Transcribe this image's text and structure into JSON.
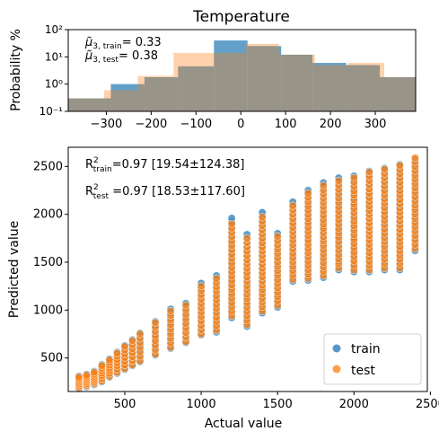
{
  "chart_data": [
    {
      "type": "bar",
      "title": "Temperature",
      "xlabel": "",
      "ylabel": "Probability %",
      "yscale": "log",
      "xlim": [
        -385,
        390
      ],
      "ylim": [
        0.1,
        100
      ],
      "xticks": [
        "−300",
        "−200",
        "−100",
        "0",
        "100",
        "200",
        "300"
      ],
      "xtick_values": [
        -300,
        -200,
        -100,
        0,
        100,
        200,
        300
      ],
      "yticks": [
        "10⁻¹",
        "10⁰",
        "10¹",
        "10²"
      ],
      "ytick_values": [
        0.1,
        1,
        10,
        100
      ],
      "annotations": [
        {
          "name": "μ̃₃,train",
          "value_text": "= 0.33"
        },
        {
          "name": "μ̃₃,test",
          "value_text": "= 0.38"
        }
      ],
      "series": [
        {
          "name": "train",
          "color": "#1f77b4",
          "bins": [
            {
              "x0": -385,
              "x1": -290,
              "value": 0.3
            },
            {
              "x0": -290,
              "x1": -215,
              "value": 1.0
            },
            {
              "x0": -215,
              "x1": -140,
              "value": 1.8
            },
            {
              "x0": -140,
              "x1": -60,
              "value": 4.5
            },
            {
              "x0": -60,
              "x1": 15,
              "value": 40
            },
            {
              "x0": 15,
              "x1": 90,
              "value": 25
            },
            {
              "x0": 90,
              "x1": 160,
              "value": 12
            },
            {
              "x0": 160,
              "x1": 235,
              "value": 6
            },
            {
              "x0": 235,
              "x1": 310,
              "value": 5
            },
            {
              "x0": 310,
              "x1": 390,
              "value": 1.8
            }
          ]
        },
        {
          "name": "test",
          "color": "#ff7f0e",
          "bins": [
            {
              "x0": -385,
              "x1": -305,
              "value": 0.3
            },
            {
              "x0": -305,
              "x1": -230,
              "value": 0.6
            },
            {
              "x0": -230,
              "x1": -150,
              "value": 2.0
            },
            {
              "x0": -150,
              "x1": -70,
              "value": 14
            },
            {
              "x0": -70,
              "x1": 10,
              "value": 14
            },
            {
              "x0": 10,
              "x1": 85,
              "value": 30
            },
            {
              "x0": 85,
              "x1": 165,
              "value": 12
            },
            {
              "x0": 165,
              "x1": 240,
              "value": 5
            },
            {
              "x0": 240,
              "x1": 320,
              "value": 6
            },
            {
              "x0": 320,
              "x1": 390,
              "value": 1.8
            }
          ]
        }
      ]
    },
    {
      "type": "scatter",
      "title": "",
      "xlabel": "Actual value",
      "ylabel": "Predicted value",
      "xlim": [
        130,
        2480
      ],
      "ylim": [
        150,
        2700
      ],
      "xticks": [
        "500",
        "1000",
        "1500",
        "2000",
        "2500"
      ],
      "xtick_values": [
        500,
        1000,
        1500,
        2000,
        2500
      ],
      "yticks": [
        "500",
        "1000",
        "1500",
        "2000",
        "2500"
      ],
      "ytick_values": [
        500,
        1000,
        1500,
        2000,
        2500
      ],
      "legend_position": "lower-right",
      "annotations": [
        {
          "label": "R²train",
          "text": "=0.97 [19.54±124.38]"
        },
        {
          "label": "R²test",
          "text": " =0.97 [18.53±117.60]"
        }
      ],
      "series": [
        {
          "name": "train",
          "color": "#1f77b4",
          "columns": [
            {
              "x": 200,
              "ymin": 180,
              "ymax": 310
            },
            {
              "x": 250,
              "ymin": 200,
              "ymax": 330
            },
            {
              "x": 300,
              "ymin": 220,
              "ymax": 360
            },
            {
              "x": 350,
              "ymin": 250,
              "ymax": 430
            },
            {
              "x": 400,
              "ymin": 300,
              "ymax": 490
            },
            {
              "x": 450,
              "ymin": 340,
              "ymax": 560
            },
            {
              "x": 500,
              "ymin": 380,
              "ymax": 630
            },
            {
              "x": 550,
              "ymin": 420,
              "ymax": 690
            },
            {
              "x": 600,
              "ymin": 460,
              "ymax": 760
            },
            {
              "x": 700,
              "ymin": 530,
              "ymax": 880
            },
            {
              "x": 800,
              "ymin": 600,
              "ymax": 1010
            },
            {
              "x": 900,
              "ymin": 660,
              "ymax": 1070
            },
            {
              "x": 1000,
              "ymin": 740,
              "ymax": 1280
            },
            {
              "x": 1100,
              "ymin": 770,
              "ymax": 1360
            },
            {
              "x": 1200,
              "ymin": 920,
              "ymax": 1960
            },
            {
              "x": 1300,
              "ymin": 830,
              "ymax": 1790
            },
            {
              "x": 1400,
              "ymin": 970,
              "ymax": 2020
            },
            {
              "x": 1500,
              "ymin": 1030,
              "ymax": 1800
            },
            {
              "x": 1600,
              "ymin": 1300,
              "ymax": 2130
            },
            {
              "x": 1700,
              "ymin": 1310,
              "ymax": 2250
            },
            {
              "x": 1800,
              "ymin": 1340,
              "ymax": 2330
            },
            {
              "x": 1900,
              "ymin": 1420,
              "ymax": 2380
            },
            {
              "x": 2000,
              "ymin": 1400,
              "ymax": 2400
            },
            {
              "x": 2100,
              "ymin": 1400,
              "ymax": 2450
            },
            {
              "x": 2200,
              "ymin": 1420,
              "ymax": 2480
            },
            {
              "x": 2300,
              "ymin": 1420,
              "ymax": 2520
            },
            {
              "x": 2400,
              "ymin": 1620,
              "ymax": 2570
            }
          ]
        },
        {
          "name": "test",
          "color": "#ff7f0e",
          "columns": [
            {
              "x": 200,
              "ymin": 190,
              "ymax": 300
            },
            {
              "x": 250,
              "ymin": 210,
              "ymax": 320
            },
            {
              "x": 300,
              "ymin": 230,
              "ymax": 350
            },
            {
              "x": 350,
              "ymin": 260,
              "ymax": 420
            },
            {
              "x": 400,
              "ymin": 310,
              "ymax": 480
            },
            {
              "x": 450,
              "ymin": 350,
              "ymax": 550
            },
            {
              "x": 500,
              "ymin": 390,
              "ymax": 620
            },
            {
              "x": 550,
              "ymin": 430,
              "ymax": 680
            },
            {
              "x": 600,
              "ymin": 470,
              "ymax": 750
            },
            {
              "x": 700,
              "ymin": 540,
              "ymax": 870
            },
            {
              "x": 800,
              "ymin": 610,
              "ymax": 990
            },
            {
              "x": 900,
              "ymin": 670,
              "ymax": 1050
            },
            {
              "x": 1000,
              "ymin": 750,
              "ymax": 1250
            },
            {
              "x": 1100,
              "ymin": 790,
              "ymax": 1330
            },
            {
              "x": 1200,
              "ymin": 940,
              "ymax": 1900
            },
            {
              "x": 1300,
              "ymin": 850,
              "ymax": 1750
            },
            {
              "x": 1400,
              "ymin": 990,
              "ymax": 1970
            },
            {
              "x": 1500,
              "ymin": 1050,
              "ymax": 1770
            },
            {
              "x": 1600,
              "ymin": 1320,
              "ymax": 2090
            },
            {
              "x": 1700,
              "ymin": 1330,
              "ymax": 2220
            },
            {
              "x": 1800,
              "ymin": 1360,
              "ymax": 2300
            },
            {
              "x": 1900,
              "ymin": 1440,
              "ymax": 2350
            },
            {
              "x": 2000,
              "ymin": 1420,
              "ymax": 2380
            },
            {
              "x": 2100,
              "ymin": 1420,
              "ymax": 2440
            },
            {
              "x": 2200,
              "ymin": 1440,
              "ymax": 2470
            },
            {
              "x": 2300,
              "ymin": 1440,
              "ymax": 2510
            },
            {
              "x": 2400,
              "ymin": 1640,
              "ymax": 2590
            }
          ]
        }
      ]
    }
  ]
}
